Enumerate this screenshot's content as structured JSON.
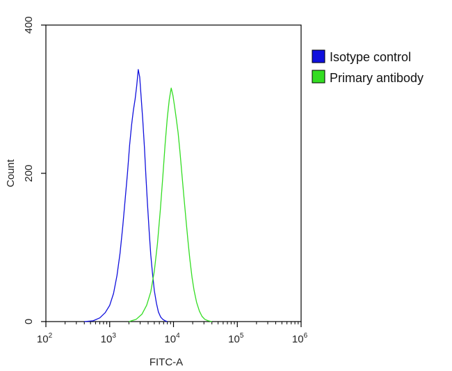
{
  "chart_data": {
    "type": "line",
    "title": "",
    "xlabel": "FITC-A",
    "ylabel": "Count",
    "x_scale": "log",
    "xlim": [
      100,
      1000000
    ],
    "ylim": [
      0,
      400
    ],
    "x_ticks": [
      {
        "value": 100,
        "base": "10",
        "exp": "2"
      },
      {
        "value": 1000,
        "base": "10",
        "exp": "3"
      },
      {
        "value": 10000,
        "base": "10",
        "exp": "4"
      },
      {
        "value": 100000,
        "base": "10",
        "exp": "5"
      },
      {
        "value": 1000000,
        "base": "10",
        "exp": "6"
      }
    ],
    "y_ticks": [
      {
        "value": 0,
        "label": "0"
      },
      {
        "value": 200,
        "label": "200"
      },
      {
        "value": 400,
        "label": "400"
      }
    ],
    "grid": false,
    "legend_position": "right",
    "series": [
      {
        "name": "Isotype control",
        "color": "#1010dd",
        "x": [
          400,
          550,
          700,
          850,
          1000,
          1150,
          1300,
          1450,
          1600,
          1750,
          1900,
          2050,
          2200,
          2350,
          2500,
          2650,
          2800,
          2950,
          3100,
          3300,
          3500,
          3700,
          3900,
          4150,
          4400,
          4700,
          5000,
          5400,
          5800,
          6300,
          6800,
          7400,
          8000
        ],
        "y": [
          0,
          1,
          5,
          12,
          22,
          38,
          62,
          92,
          128,
          165,
          200,
          238,
          265,
          285,
          300,
          318,
          340,
          330,
          305,
          272,
          235,
          195,
          160,
          122,
          90,
          64,
          42,
          25,
          13,
          6,
          3,
          1,
          0
        ]
      },
      {
        "name": "Primary antibody",
        "color": "#33dd22",
        "x": [
          2000,
          2600,
          3200,
          3800,
          4400,
          5000,
          5600,
          6200,
          6800,
          7400,
          8000,
          8600,
          9200,
          9800,
          10400,
          11000,
          11800,
          12600,
          13500,
          14500,
          15600,
          16800,
          18000,
          19500,
          21000,
          23000,
          25500,
          28000,
          31000,
          35000,
          40000
        ],
        "y": [
          0,
          3,
          10,
          22,
          40,
          68,
          105,
          150,
          195,
          240,
          275,
          300,
          315,
          305,
          290,
          275,
          255,
          230,
          200,
          170,
          140,
          110,
          85,
          60,
          42,
          26,
          14,
          7,
          3,
          1,
          0
        ]
      }
    ]
  }
}
